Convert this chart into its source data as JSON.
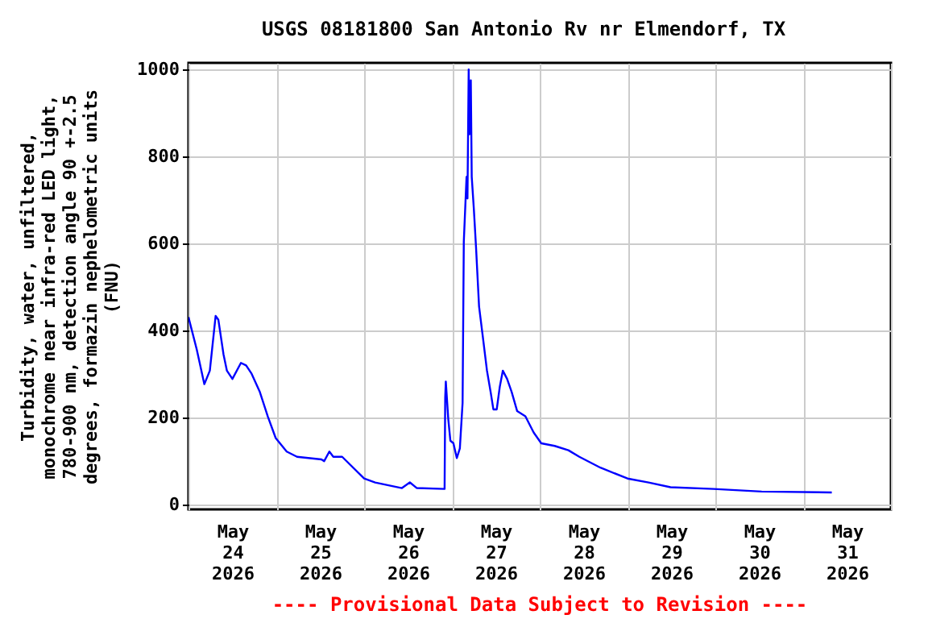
{
  "chart_data": {
    "type": "line",
    "title": "USGS 08181800 San Antonio Rv nr Elmendorf, TX",
    "ylabel": "Turbidity, water, unfiltered, monochrome near infra-red LED light, 780-900 nm, detection angle 90 +-2.5 degrees, formazin nephelometric units (FNU)",
    "annotations": [
      "---- Provisional Data Subject to Revision ----"
    ],
    "x": [
      "2026-05-24T00:00",
      "2026-05-24T02:15",
      "2026-05-24T04:20",
      "2026-05-24T05:50",
      "2026-05-24T07:25",
      "2026-05-24T08:10",
      "2026-05-24T09:35",
      "2026-05-24T10:30",
      "2026-05-24T12:00",
      "2026-05-24T14:20",
      "2026-05-24T15:45",
      "2026-05-24T17:15",
      "2026-05-24T19:30",
      "2026-05-24T21:40",
      "2026-05-24T23:50",
      "2026-05-25T02:50",
      "2026-05-25T05:40",
      "2026-05-25T12:20",
      "2026-05-25T13:05",
      "2026-05-25T14:30",
      "2026-05-25T15:35",
      "2026-05-25T18:00",
      "2026-05-26T00:00",
      "2026-05-26T03:00",
      "2026-05-26T10:20",
      "2026-05-26T12:30",
      "2026-05-26T14:25",
      "2026-05-26T22:00",
      "2026-05-26T22:10",
      "2026-05-26T22:20",
      "2026-05-26T23:00",
      "2026-05-26T23:35",
      "2026-05-27T00:25",
      "2026-05-27T01:20",
      "2026-05-27T02:10",
      "2026-05-27T02:55",
      "2026-05-27T03:15",
      "2026-05-27T04:00",
      "2026-05-27T04:15",
      "2026-05-27T04:35",
      "2026-05-27T04:50",
      "2026-05-27T05:10",
      "2026-05-27T05:25",
      "2026-05-27T06:00",
      "2026-05-27T06:35",
      "2026-05-27T07:25",
      "2026-05-27T08:20",
      "2026-05-27T09:35",
      "2026-05-27T10:35",
      "2026-05-27T11:20",
      "2026-05-27T12:15",
      "2026-05-27T13:05",
      "2026-05-27T13:55",
      "2026-05-27T15:05",
      "2026-05-27T16:20",
      "2026-05-27T17:50",
      "2026-05-27T20:05",
      "2026-05-27T22:20",
      "2026-05-28T00:25",
      "2026-05-28T04:05",
      "2026-05-28T07:50",
      "2026-05-28T10:50",
      "2026-05-28T16:35",
      "2026-05-29T00:00",
      "2026-05-29T05:45",
      "2026-05-29T11:45",
      "2026-05-29T23:30",
      "2026-05-30T12:40",
      "2026-05-31T07:50"
    ],
    "series": [
      {
        "color": "#0000ff",
        "values": [
          430,
          356,
          276,
          307,
          433,
          424,
          344,
          307,
          288,
          325,
          319,
          300,
          258,
          202,
          152,
          121,
          109,
          103,
          99,
          121,
          109,
          109,
          59,
          50,
          37,
          50,
          37,
          35,
          245,
          282,
          196,
          146,
          140,
          106,
          128,
          233,
          604,
          753,
          703,
          1000,
          851,
          975,
          753,
          678,
          592,
          455,
          393,
          307,
          258,
          218,
          218,
          270,
          307,
          288,
          258,
          214,
          202,
          165,
          140,
          134,
          124,
          109,
          84,
          59,
          50,
          39,
          35,
          29,
          27
        ]
      }
    ],
    "xlim": [
      "2026-05-24T00:00",
      "2026-06-01T00:00"
    ],
    "xticks": [
      {
        "value": "2026-05-24T00:00",
        "label": null
      },
      {
        "value": "2026-05-24T12:00",
        "label": "May 24 2026"
      },
      {
        "value": "2026-05-25T00:00",
        "label": null
      },
      {
        "value": "2026-05-25T12:00",
        "label": "May 25 2026"
      },
      {
        "value": "2026-05-26T00:00",
        "label": null
      },
      {
        "value": "2026-05-26T12:00",
        "label": "May 26 2026"
      },
      {
        "value": "2026-05-27T00:00",
        "label": null
      },
      {
        "value": "2026-05-27T12:00",
        "label": "May 27 2026"
      },
      {
        "value": "2026-05-28T00:00",
        "label": null
      },
      {
        "value": "2026-05-28T12:00",
        "label": "May 28 2026"
      },
      {
        "value": "2026-05-29T00:00",
        "label": null
      },
      {
        "value": "2026-05-29T12:00",
        "label": "May 29 2026"
      },
      {
        "value": "2026-05-30T00:00",
        "label": null
      },
      {
        "value": "2026-05-30T12:00",
        "label": "May 30 2026"
      },
      {
        "value": "2026-05-31T00:00",
        "label": null
      },
      {
        "value": "2026-05-31T12:00",
        "label": "May 31 2026"
      },
      {
        "value": "2026-06-01T00:00",
        "label": null
      }
    ],
    "ylim": [
      -12,
      1015
    ],
    "yticks": [
      0,
      200,
      400,
      600,
      800,
      1000
    ],
    "grid": true
  }
}
